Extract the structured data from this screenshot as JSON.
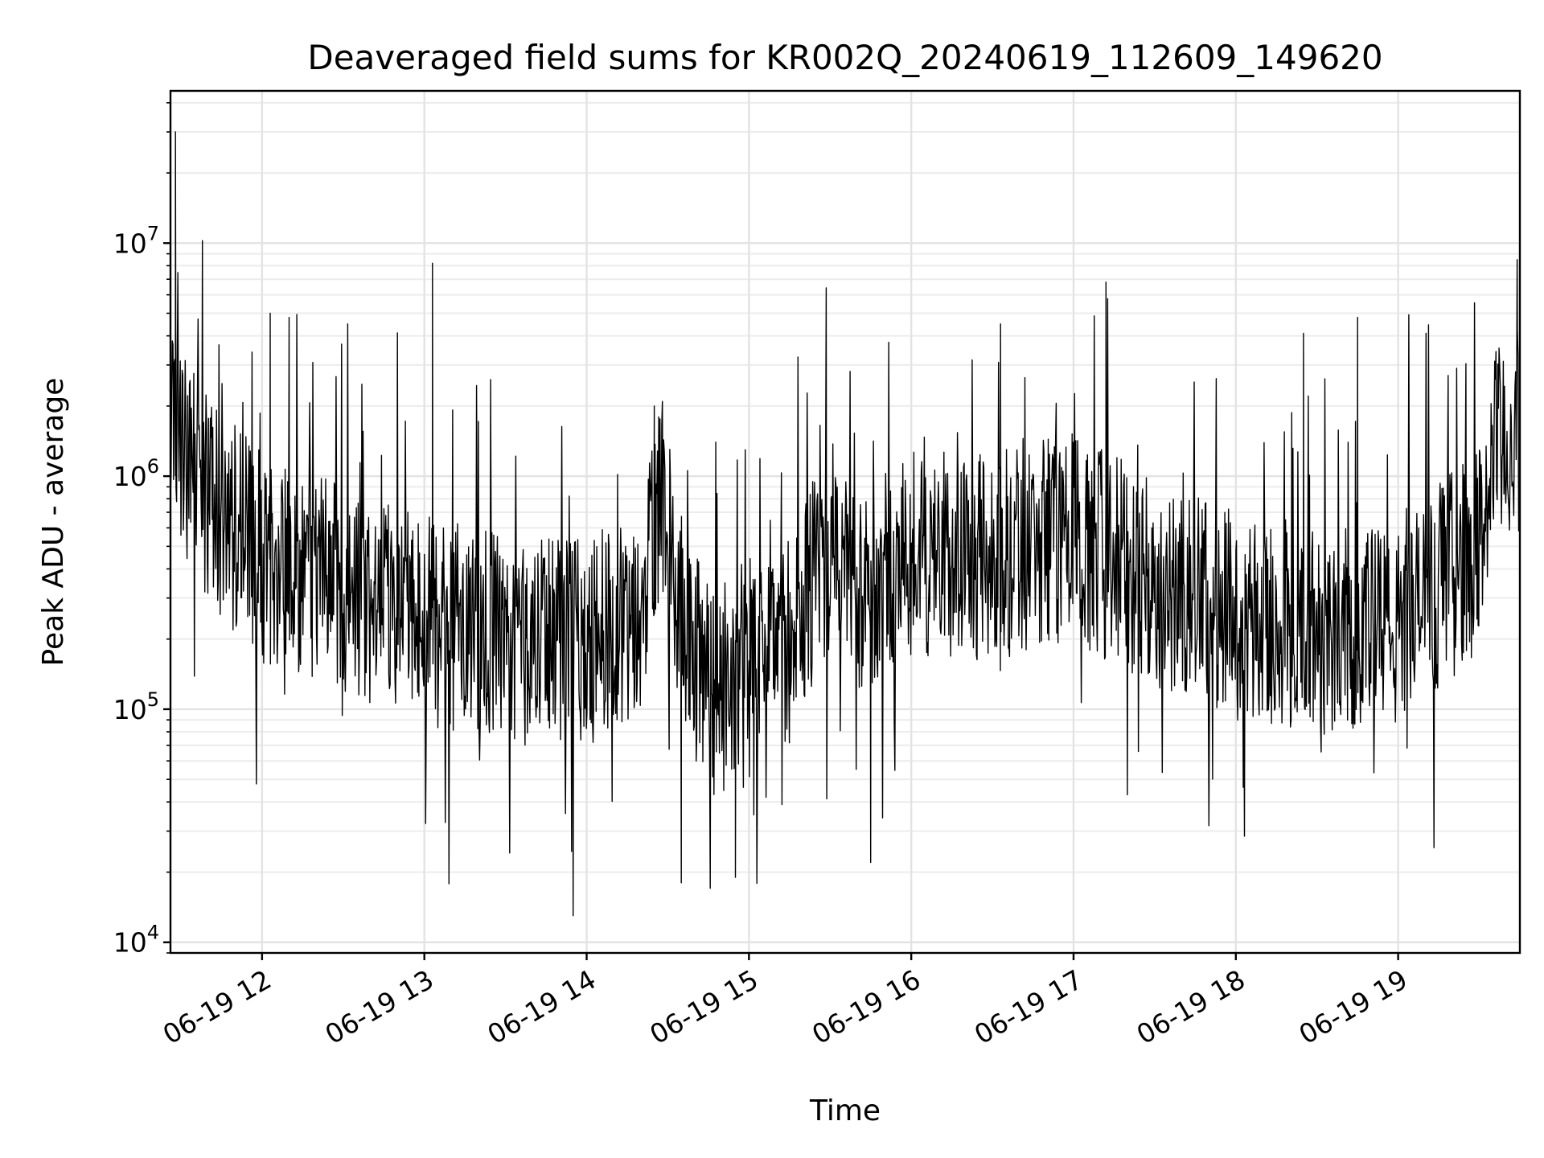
{
  "chart_data": {
    "type": "line",
    "title": "Deaveraged field sums for KR002Q_20240619_112609_149620",
    "xlabel": "Time",
    "ylabel": "Peak ADU - average",
    "yscale": "log",
    "ylim": [
      9000,
      45000000
    ],
    "xlim": [
      "2024-06-19 11:26:09",
      "2024-06-19 19:45:00"
    ],
    "grid": "both",
    "x_ticks": [
      "06-19 12",
      "06-19 13",
      "06-19 14",
      "06-19 15",
      "06-19 16",
      "06-19 17",
      "06-19 18",
      "06-19 19"
    ],
    "y_ticks": [
      {
        "base": "10",
        "exp": "4",
        "value": 10000
      },
      {
        "base": "10",
        "exp": "5",
        "value": 100000
      },
      {
        "base": "10",
        "exp": "6",
        "value": 1000000
      },
      {
        "base": "10",
        "exp": "7",
        "value": 10000000
      }
    ],
    "series_color": "#000000",
    "envelope_points": [
      {
        "x": "2024-06-19 11:26",
        "y": 1800000
      },
      {
        "x": "2024-06-19 11:35",
        "y": 1000000
      },
      {
        "x": "2024-06-19 11:45",
        "y": 700000
      },
      {
        "x": "2024-06-19 12:00",
        "y": 450000
      },
      {
        "x": "2024-06-19 12:30",
        "y": 320000
      },
      {
        "x": "2024-06-19 13:00",
        "y": 240000
      },
      {
        "x": "2024-06-19 13:30",
        "y": 200000
      },
      {
        "x": "2024-06-19 14:00",
        "y": 190000
      },
      {
        "x": "2024-06-19 14:20",
        "y": 280000
      },
      {
        "x": "2024-06-19 14:28",
        "y": 900000
      },
      {
        "x": "2024-06-19 14:32",
        "y": 300000
      },
      {
        "x": "2024-06-19 14:45",
        "y": 120000
      },
      {
        "x": "2024-06-19 15:00",
        "y": 130000
      },
      {
        "x": "2024-06-19 15:15",
        "y": 200000
      },
      {
        "x": "2024-06-19 15:30",
        "y": 500000
      },
      {
        "x": "2024-06-19 15:45",
        "y": 300000
      },
      {
        "x": "2024-06-19 16:00",
        "y": 450000
      },
      {
        "x": "2024-06-19 16:30",
        "y": 450000
      },
      {
        "x": "2024-06-19 17:00",
        "y": 550000
      },
      {
        "x": "2024-06-19 17:30",
        "y": 350000
      },
      {
        "x": "2024-06-19 18:00",
        "y": 250000
      },
      {
        "x": "2024-06-19 18:30",
        "y": 220000
      },
      {
        "x": "2024-06-19 19:00",
        "y": 220000
      },
      {
        "x": "2024-06-19 19:30",
        "y": 500000
      },
      {
        "x": "2024-06-19 19:35",
        "y": 1200000
      },
      {
        "x": "2024-06-19 19:45",
        "y": 1600000
      }
    ],
    "spikes": [
      {
        "x": "2024-06-19 11:28",
        "y": 30000000
      },
      {
        "x": "2024-06-19 12:03",
        "y": 5000000
      },
      {
        "x": "2024-06-19 12:10",
        "y": 4800000
      },
      {
        "x": "2024-06-19 13:03",
        "y": 8200000
      },
      {
        "x": "2024-06-19 14:25",
        "y": 2000000
      },
      {
        "x": "2024-06-19 16:33",
        "y": 4500000
      },
      {
        "x": "2024-06-19 17:12",
        "y": 6800000
      },
      {
        "x": "2024-06-19 18:25",
        "y": 4100000
      },
      {
        "x": "2024-06-19 18:45",
        "y": 4800000
      },
      {
        "x": "2024-06-19 19:44",
        "y": 8500000
      },
      {
        "x": "2024-06-19 13:55",
        "y": 13000
      },
      {
        "x": "2024-06-19 14:35",
        "y": 18000
      },
      {
        "x": "2024-06-19 14:55",
        "y": 19000
      },
      {
        "x": "2024-06-19 15:45",
        "y": 22000
      }
    ]
  }
}
